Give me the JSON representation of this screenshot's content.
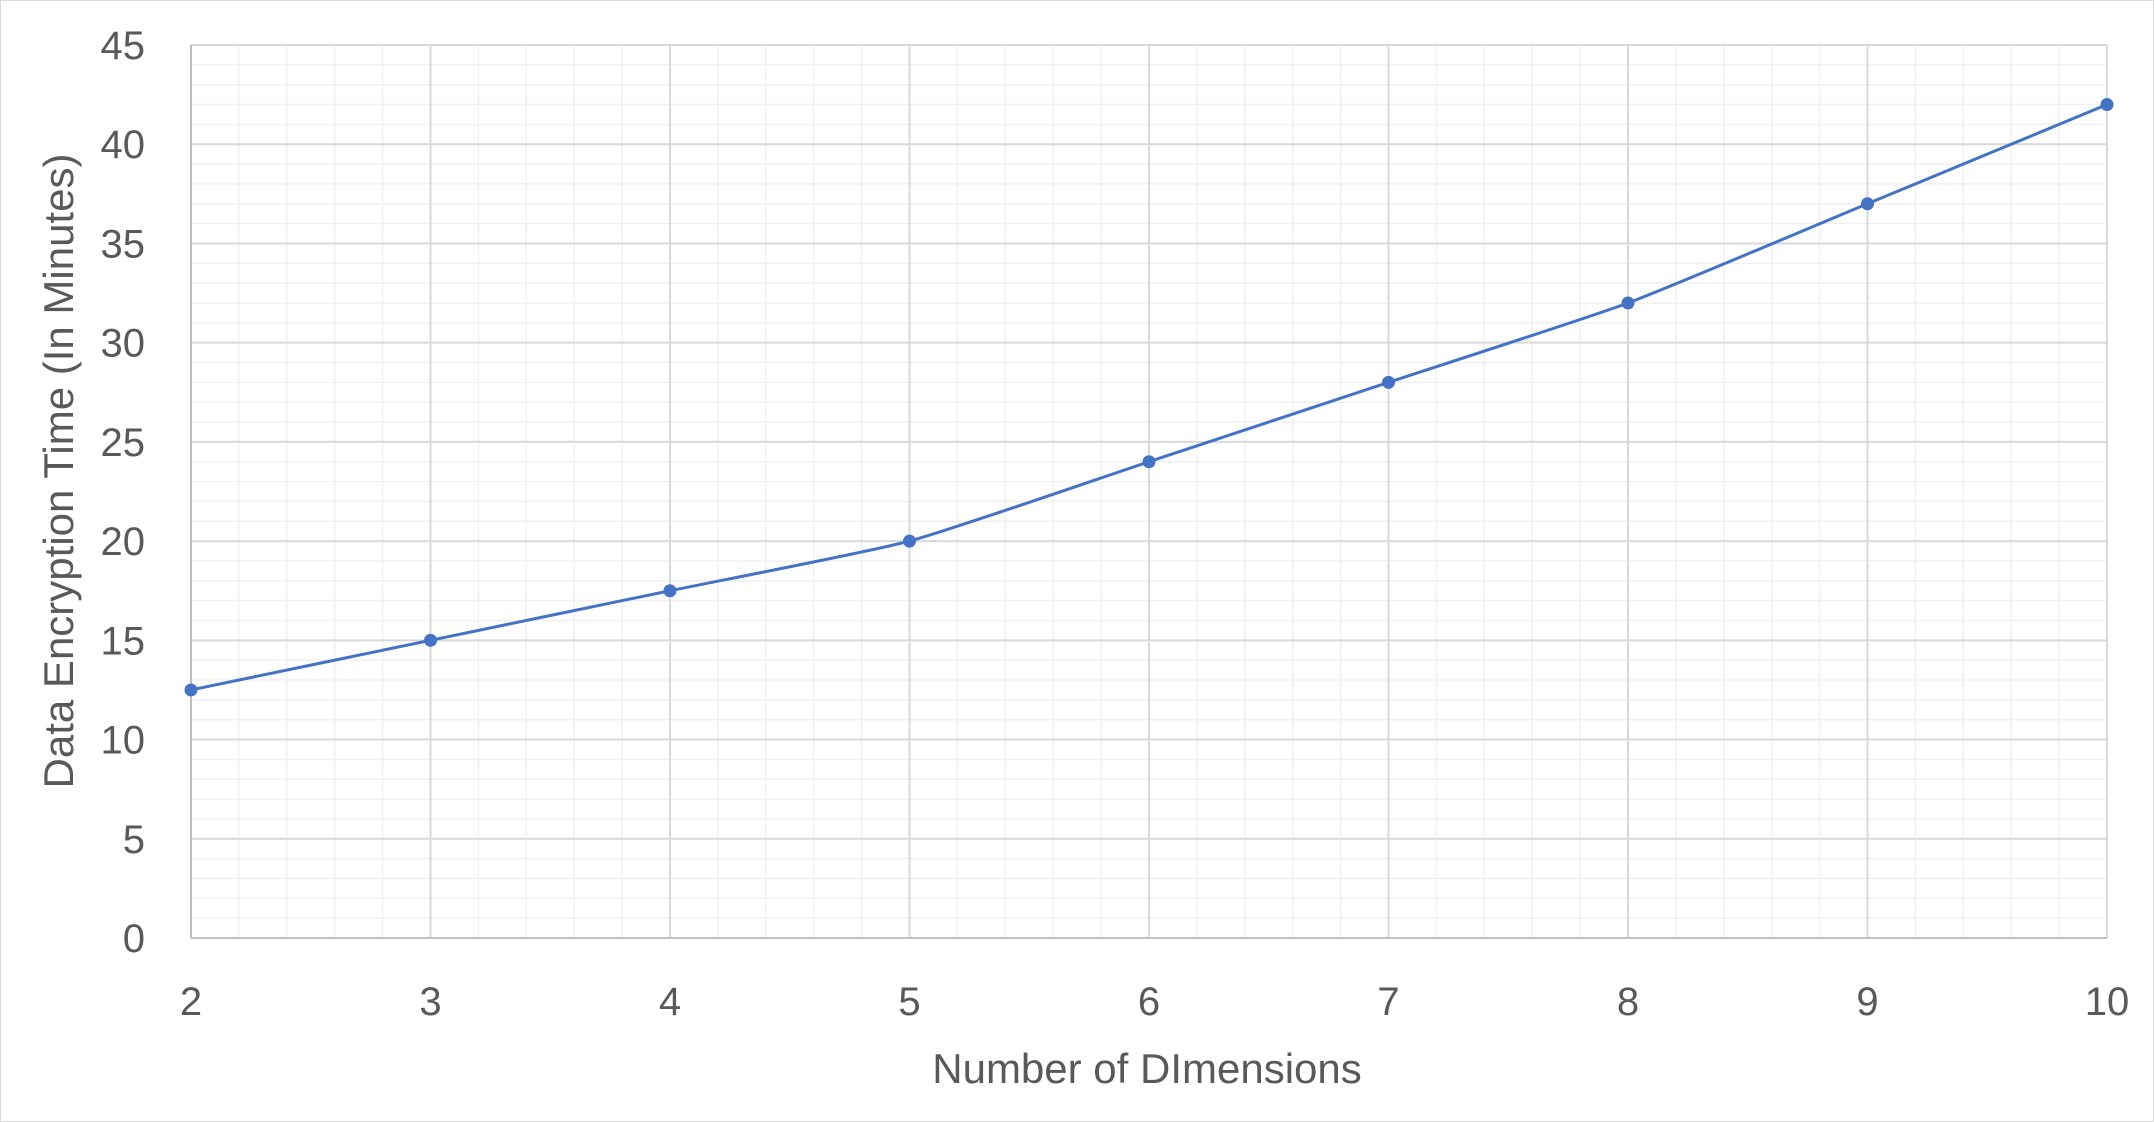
{
  "chart_data": {
    "type": "line",
    "title": "",
    "xlabel": "Number of DImensions",
    "ylabel": "Data Encryption Time (In Minutes)",
    "x": [
      2,
      3,
      4,
      5,
      6,
      7,
      8,
      9,
      10
    ],
    "series": [
      {
        "values": [
          12.5,
          15,
          17.5,
          20,
          24,
          28,
          32,
          37,
          42
        ],
        "color": "#4472C4"
      }
    ],
    "xlim": [
      2,
      10
    ],
    "ylim": [
      0,
      45
    ],
    "xticks": [
      "2",
      "3",
      "4",
      "5",
      "6",
      "7",
      "8",
      "9",
      "10"
    ],
    "yticks": [
      "0",
      "5",
      "10",
      "15",
      "20",
      "25",
      "30",
      "35",
      "40",
      "45"
    ],
    "grid": true,
    "minor_grid": true,
    "smooth": true,
    "legend": "none",
    "colors": {
      "major_grid": "#d9d9d9",
      "minor_grid": "#f0f0f0",
      "text": "#595959"
    }
  }
}
